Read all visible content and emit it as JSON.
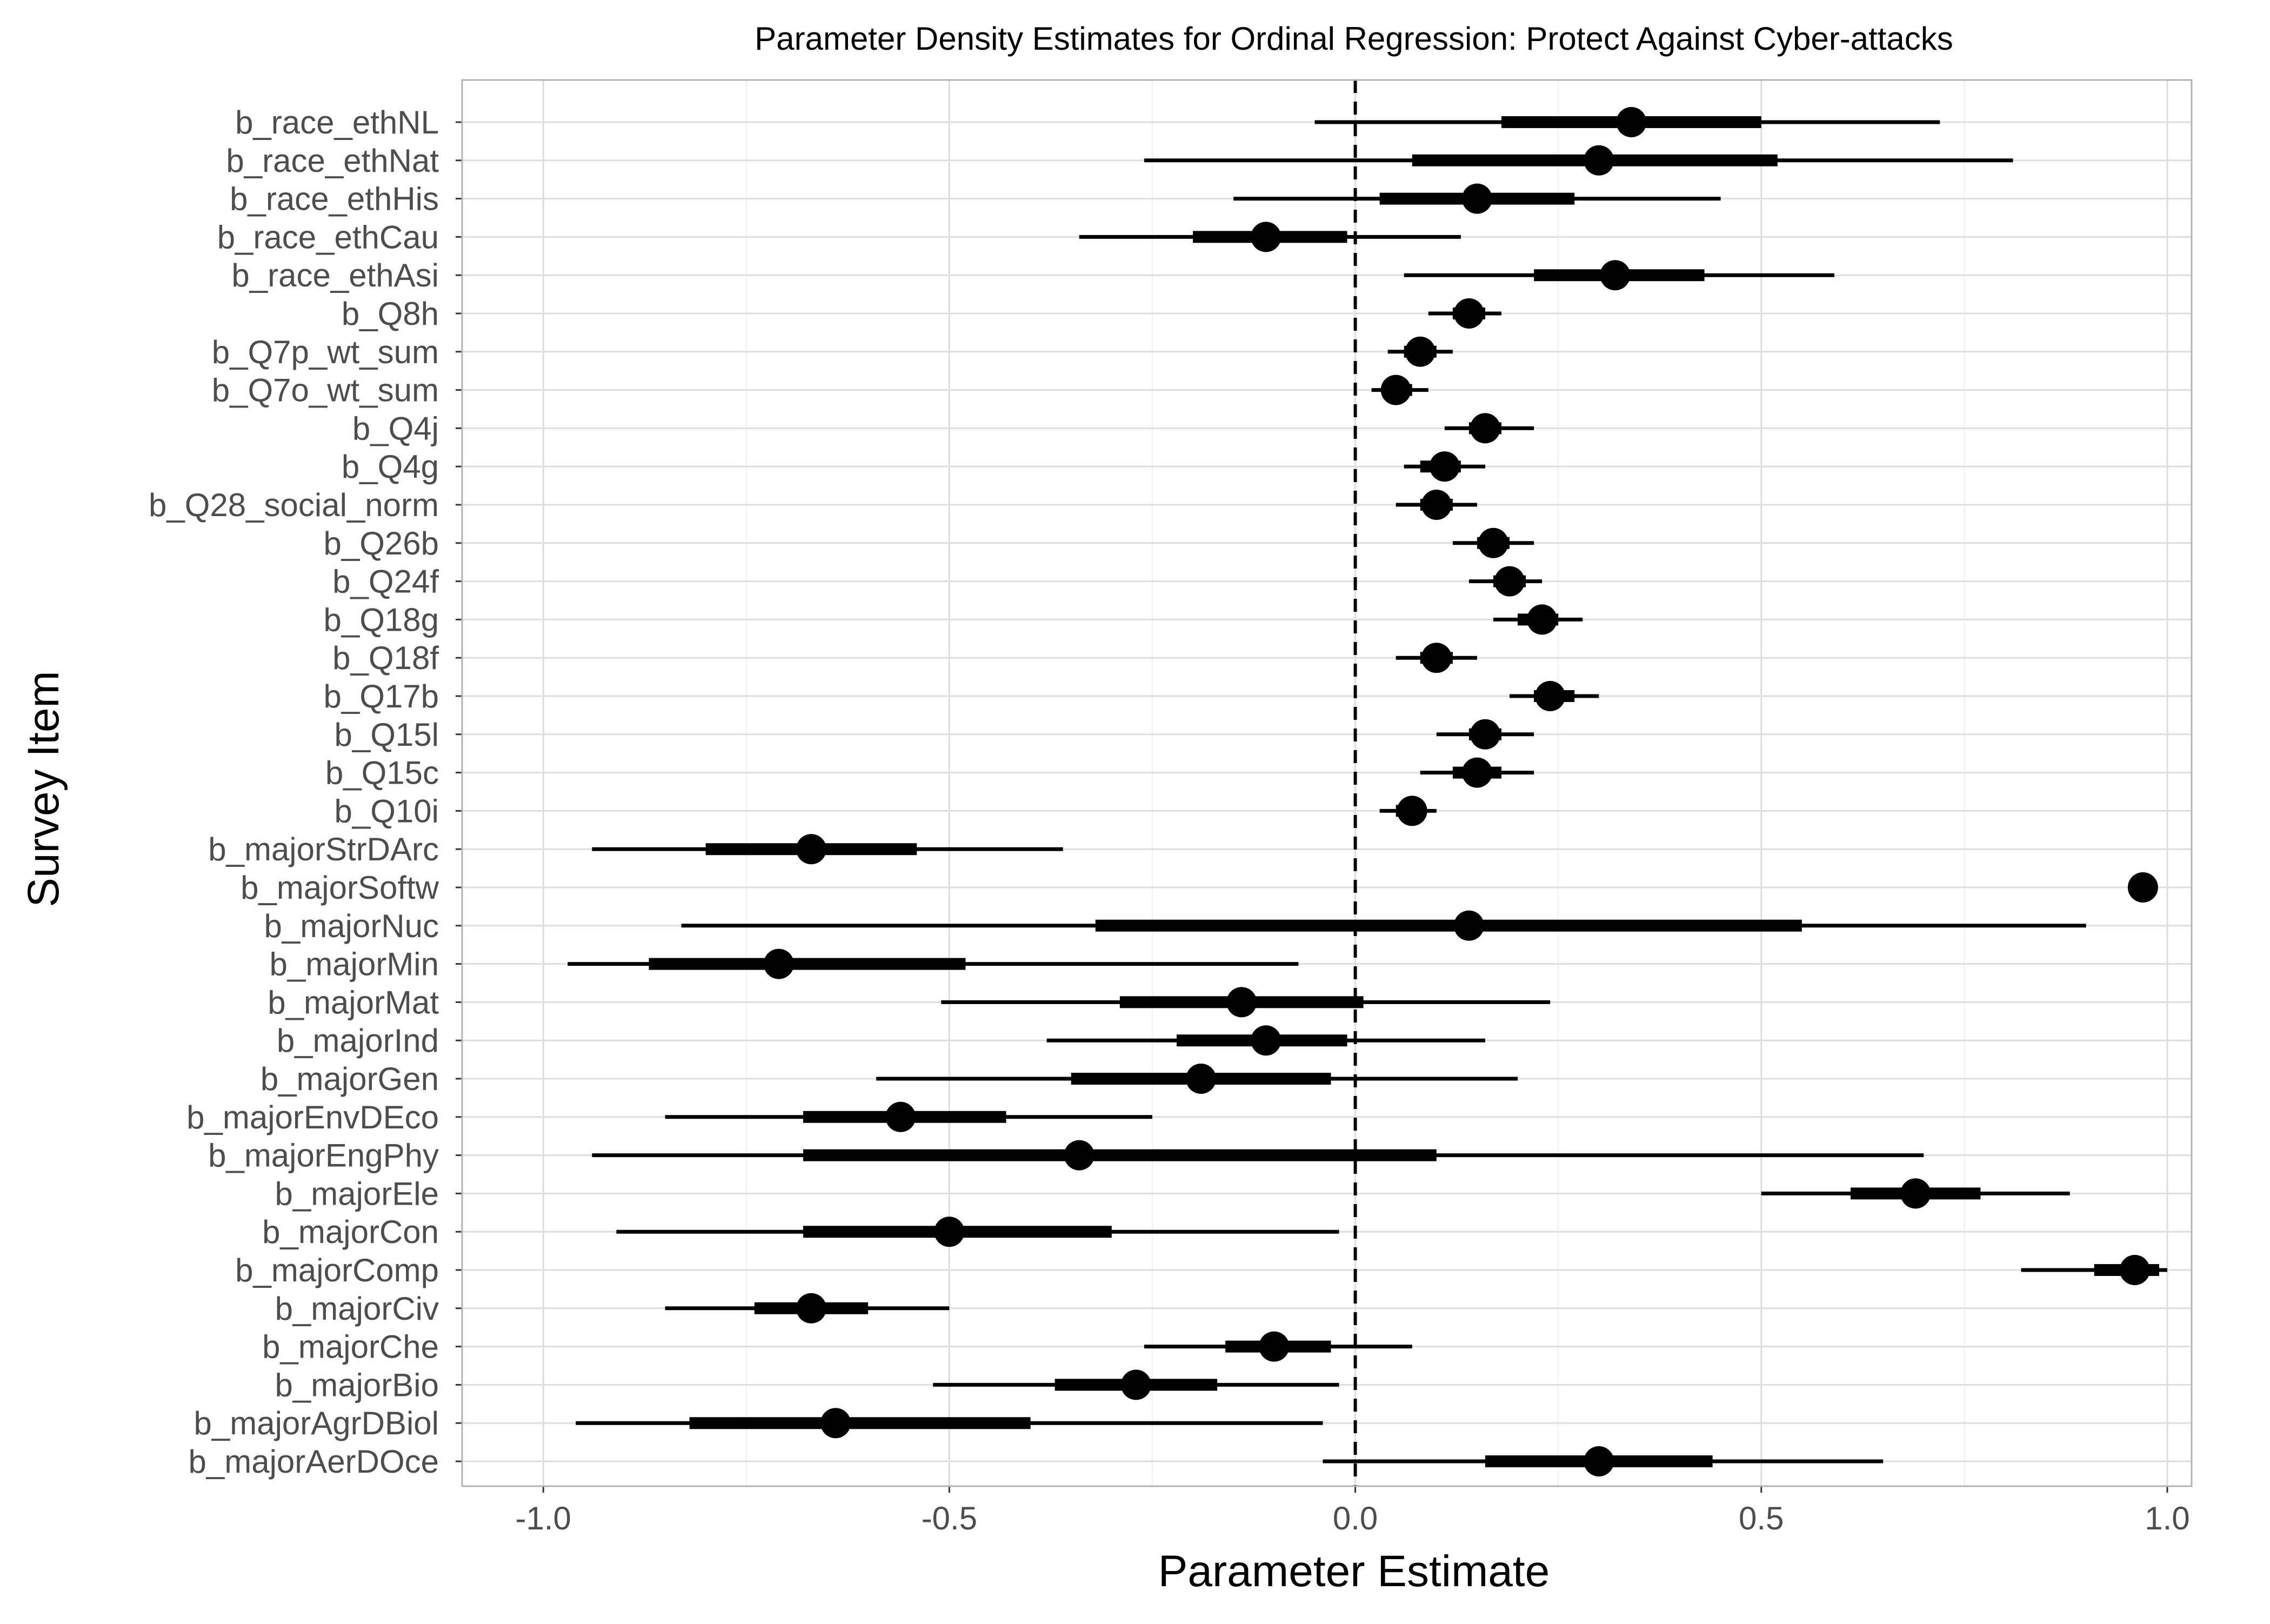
{
  "chart_data": {
    "type": "interval",
    "title": "Parameter Density Estimates for Ordinal Regression: Protect Against Cyber-attacks",
    "xlabel": "Parameter Estimate",
    "ylabel": "Survey Item",
    "xlim": [
      -1.1,
      1.03
    ],
    "x_ticks": [
      -1.0,
      -0.5,
      0.0,
      0.5,
      1.0
    ],
    "x_tick_labels": [
      "-1.0",
      "-0.5",
      "0.0",
      "0.5",
      "1.0"
    ],
    "reference_line": 0,
    "grid": true,
    "items": [
      {
        "label": "b_race_ethNL",
        "estimate": 0.34,
        "inner": [
          0.18,
          0.5
        ],
        "outer": [
          -0.05,
          0.72
        ]
      },
      {
        "label": "b_race_ethNat",
        "estimate": 0.3,
        "inner": [
          0.07,
          0.52
        ],
        "outer": [
          -0.26,
          0.81
        ]
      },
      {
        "label": "b_race_ethHis",
        "estimate": 0.15,
        "inner": [
          0.03,
          0.27
        ],
        "outer": [
          -0.15,
          0.45
        ]
      },
      {
        "label": "b_race_ethCau",
        "estimate": -0.11,
        "inner": [
          -0.2,
          -0.01
        ],
        "outer": [
          -0.34,
          0.13
        ]
      },
      {
        "label": "b_race_ethAsi",
        "estimate": 0.32,
        "inner": [
          0.22,
          0.43
        ],
        "outer": [
          0.06,
          0.59
        ]
      },
      {
        "label": "b_Q8h",
        "estimate": 0.14,
        "inner": [
          0.12,
          0.16
        ],
        "outer": [
          0.09,
          0.18
        ]
      },
      {
        "label": "b_Q7p_wt_sum",
        "estimate": 0.08,
        "inner": [
          0.06,
          0.1
        ],
        "outer": [
          0.04,
          0.12
        ]
      },
      {
        "label": "b_Q7o_wt_sum",
        "estimate": 0.05,
        "inner": [
          0.04,
          0.07
        ],
        "outer": [
          0.02,
          0.09
        ]
      },
      {
        "label": "b_Q4j",
        "estimate": 0.16,
        "inner": [
          0.14,
          0.18
        ],
        "outer": [
          0.11,
          0.22
        ]
      },
      {
        "label": "b_Q4g",
        "estimate": 0.11,
        "inner": [
          0.08,
          0.13
        ],
        "outer": [
          0.06,
          0.16
        ]
      },
      {
        "label": "b_Q28_social_norm",
        "estimate": 0.1,
        "inner": [
          0.08,
          0.12
        ],
        "outer": [
          0.05,
          0.15
        ]
      },
      {
        "label": "b_Q26b",
        "estimate": 0.17,
        "inner": [
          0.15,
          0.19
        ],
        "outer": [
          0.12,
          0.22
        ]
      },
      {
        "label": "b_Q24f",
        "estimate": 0.19,
        "inner": [
          0.17,
          0.21
        ],
        "outer": [
          0.14,
          0.23
        ]
      },
      {
        "label": "b_Q18g",
        "estimate": 0.23,
        "inner": [
          0.2,
          0.25
        ],
        "outer": [
          0.17,
          0.28
        ]
      },
      {
        "label": "b_Q18f",
        "estimate": 0.1,
        "inner": [
          0.08,
          0.12
        ],
        "outer": [
          0.05,
          0.15
        ]
      },
      {
        "label": "b_Q17b",
        "estimate": 0.24,
        "inner": [
          0.22,
          0.27
        ],
        "outer": [
          0.19,
          0.3
        ]
      },
      {
        "label": "b_Q15l",
        "estimate": 0.16,
        "inner": [
          0.14,
          0.18
        ],
        "outer": [
          0.1,
          0.22
        ]
      },
      {
        "label": "b_Q15c",
        "estimate": 0.15,
        "inner": [
          0.12,
          0.18
        ],
        "outer": [
          0.08,
          0.22
        ]
      },
      {
        "label": "b_Q10i",
        "estimate": 0.07,
        "inner": [
          0.05,
          0.08
        ],
        "outer": [
          0.03,
          0.1
        ]
      },
      {
        "label": "b_majorStrDArc",
        "estimate": -0.67,
        "inner": [
          -0.8,
          -0.54
        ],
        "outer": [
          -0.94,
          -0.36
        ]
      },
      {
        "label": "b_majorSoftw",
        "estimate": 0.97,
        "inner": [
          0.97,
          0.98
        ],
        "outer": [
          0.96,
          0.98
        ]
      },
      {
        "label": "b_majorNuc",
        "estimate": 0.14,
        "inner": [
          -0.32,
          0.55
        ],
        "outer": [
          -0.83,
          0.9
        ]
      },
      {
        "label": "b_majorMin",
        "estimate": -0.71,
        "inner": [
          -0.87,
          -0.48
        ],
        "outer": [
          -0.97,
          -0.07
        ]
      },
      {
        "label": "b_majorMat",
        "estimate": -0.14,
        "inner": [
          -0.29,
          0.01
        ],
        "outer": [
          -0.51,
          0.24
        ]
      },
      {
        "label": "b_majorInd",
        "estimate": -0.11,
        "inner": [
          -0.22,
          -0.01
        ],
        "outer": [
          -0.38,
          0.16
        ]
      },
      {
        "label": "b_majorGen",
        "estimate": -0.19,
        "inner": [
          -0.35,
          -0.03
        ],
        "outer": [
          -0.59,
          0.2
        ]
      },
      {
        "label": "b_majorEnvDEco",
        "estimate": -0.56,
        "inner": [
          -0.68,
          -0.43
        ],
        "outer": [
          -0.85,
          -0.25
        ]
      },
      {
        "label": "b_majorEngPhy",
        "estimate": -0.34,
        "inner": [
          -0.68,
          0.1
        ],
        "outer": [
          -0.94,
          0.7
        ]
      },
      {
        "label": "b_majorEle",
        "estimate": 0.69,
        "inner": [
          0.61,
          0.77
        ],
        "outer": [
          0.5,
          0.88
        ]
      },
      {
        "label": "b_majorCon",
        "estimate": -0.5,
        "inner": [
          -0.68,
          -0.3
        ],
        "outer": [
          -0.91,
          -0.02
        ]
      },
      {
        "label": "b_majorComp",
        "estimate": 0.96,
        "inner": [
          0.91,
          0.99
        ],
        "outer": [
          0.82,
          1.0
        ]
      },
      {
        "label": "b_majorCiv",
        "estimate": -0.67,
        "inner": [
          -0.74,
          -0.6
        ],
        "outer": [
          -0.85,
          -0.5
        ]
      },
      {
        "label": "b_majorChe",
        "estimate": -0.1,
        "inner": [
          -0.16,
          -0.03
        ],
        "outer": [
          -0.26,
          0.07
        ]
      },
      {
        "label": "b_majorBio",
        "estimate": -0.27,
        "inner": [
          -0.37,
          -0.17
        ],
        "outer": [
          -0.52,
          -0.02
        ]
      },
      {
        "label": "b_majorAgrDBiol",
        "estimate": -0.64,
        "inner": [
          -0.82,
          -0.4
        ],
        "outer": [
          -0.96,
          -0.04
        ]
      },
      {
        "label": "b_majorAerDOce",
        "estimate": 0.3,
        "inner": [
          0.16,
          0.44
        ],
        "outer": [
          -0.04,
          0.65
        ]
      }
    ]
  }
}
